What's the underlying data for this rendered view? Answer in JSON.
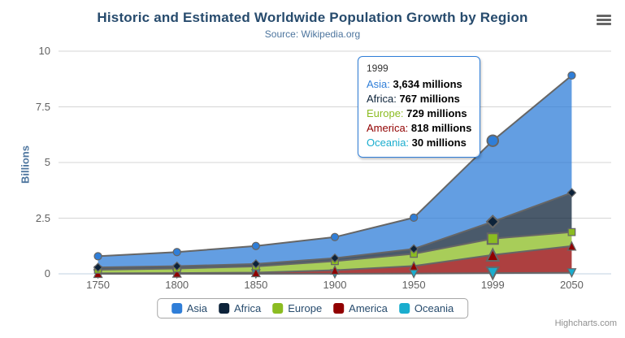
{
  "chart_data": {
    "type": "area",
    "stacking": "normal",
    "title": "Historic and Estimated Worldwide Population Growth by Region",
    "subtitle": "Source: Wikipedia.org",
    "ylabel": "Billions",
    "unit": "millions",
    "categories": [
      "1750",
      "1800",
      "1850",
      "1900",
      "1950",
      "1999",
      "2050"
    ],
    "ytick_labels": [
      "0",
      "2.5",
      "5",
      "7.5",
      "10"
    ],
    "yticks": [
      0,
      2.5,
      5,
      7.5,
      10
    ],
    "ylim": [
      0,
      10
    ],
    "grid": "horizontal",
    "legend_position": "bottom",
    "line_color": "#666666",
    "fill_opacity": 0.75,
    "series": [
      {
        "name": "Asia",
        "color": "#2f7ed8",
        "marker": "circle",
        "values_millions": [
          502,
          635,
          809,
          947,
          1402,
          3634,
          5268
        ]
      },
      {
        "name": "Africa",
        "color": "#0d233a",
        "marker": "diamond",
        "values_millions": [
          106,
          107,
          111,
          133,
          221,
          767,
          1766
        ]
      },
      {
        "name": "Europe",
        "color": "#8bbc21",
        "marker": "square",
        "values_millions": [
          163,
          203,
          276,
          408,
          547,
          729,
          628
        ]
      },
      {
        "name": "America",
        "color": "#910000",
        "marker": "triangle",
        "values_millions": [
          18,
          31,
          54,
          156,
          339,
          818,
          1201
        ]
      },
      {
        "name": "Oceania",
        "color": "#1aadce",
        "marker": "triangle-down",
        "values_millions": [
          2,
          2,
          2,
          6,
          13,
          30,
          46
        ]
      }
    ]
  },
  "tooltip": {
    "header": "1999",
    "border_color": "#2f7ed8",
    "rows": [
      {
        "name": "Asia",
        "value": "3,634 millions"
      },
      {
        "name": "Africa",
        "value": "767 millions"
      },
      {
        "name": "Europe",
        "value": "729 millions"
      },
      {
        "name": "America",
        "value": "818 millions"
      },
      {
        "name": "Oceania",
        "value": "30 millions"
      }
    ]
  },
  "credits": "Highcharts.com",
  "icons": {
    "export": "hamburger-icon"
  },
  "colors": {
    "title": "#274b6d",
    "subtitle": "#4d759e",
    "axis_labels": "#606060",
    "legend_text": "#274b6d",
    "gridline": "#d4d4d4",
    "axis_line": "#c0d0e0"
  }
}
